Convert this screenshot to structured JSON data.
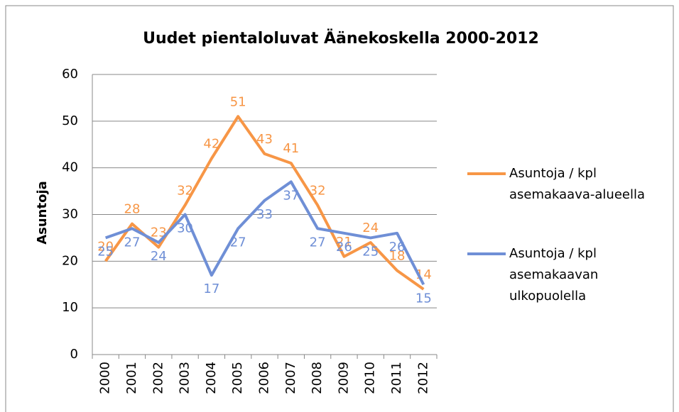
{
  "chart_data": {
    "type": "line",
    "title": "Uudet pientaloluvat Äänekoskella 2000-2012",
    "ylabel": "Asuntoja",
    "categories": [
      "2000",
      "2001",
      "2002",
      "2003",
      "2004",
      "2005",
      "2006",
      "2007",
      "2008",
      "2009",
      "2010",
      "2011",
      "2012"
    ],
    "series": [
      {
        "name": "Asuntoja / kpl asemakaava-alueella",
        "color": "#f79646",
        "values": [
          20,
          28,
          23,
          32,
          42,
          51,
          43,
          41,
          32,
          21,
          24,
          18,
          14
        ]
      },
      {
        "name": "Asuntoja / kpl asemakaavan ulkopuolella",
        "color": "#6f8fd6",
        "values": [
          25,
          27,
          24,
          30,
          17,
          27,
          33,
          37,
          27,
          26,
          25,
          26,
          15
        ]
      }
    ],
    "ylim": [
      0,
      60
    ],
    "yticks": [
      0,
      10,
      20,
      30,
      40,
      50,
      60
    ],
    "grid": true,
    "legend": "right"
  }
}
